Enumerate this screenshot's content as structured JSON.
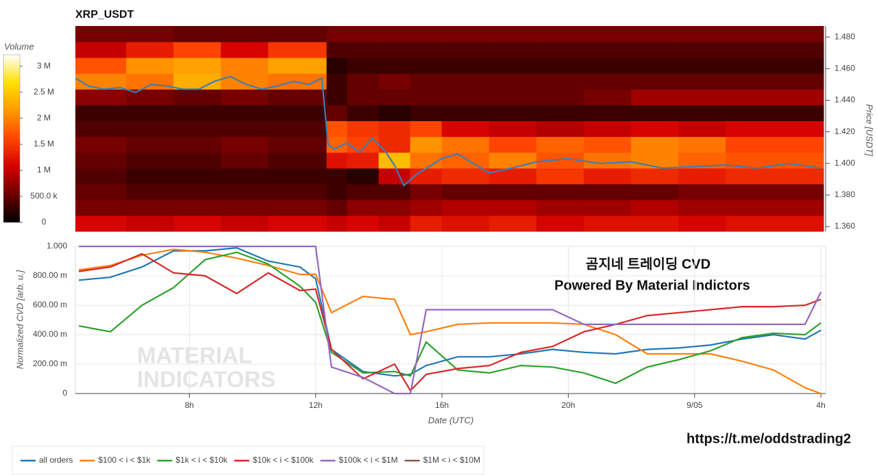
{
  "chart_data": [
    {
      "type": "heatmap",
      "title": "XRP_USDT",
      "xlim": [
        4.39,
        28.1
      ],
      "x_bins": [
        4.39,
        6,
        7.5,
        9,
        10.5,
        12.35,
        13,
        14,
        15,
        16,
        17.5,
        19,
        20.5,
        22,
        23.5,
        25,
        28.1
      ],
      "y_bins": [
        1.357,
        1.367,
        1.377,
        1.387,
        1.397,
        1.407,
        1.417,
        1.427,
        1.437,
        1.447,
        1.457,
        1.467,
        1.477,
        1.487
      ],
      "z": [
        [
          1.1,
          1.0,
          1.1,
          1.0,
          1.1,
          1.0,
          1.1,
          1.0,
          1.3,
          1.2,
          1.3,
          1.1,
          1.2,
          1.2,
          1.1,
          1.2
        ],
        [
          0.6,
          0.6,
          0.6,
          0.6,
          0.6,
          0.5,
          0.7,
          0.7,
          0.8,
          0.9,
          0.9,
          0.8,
          0.8,
          0.9,
          0.8,
          0.8
        ],
        [
          0.5,
          0.4,
          0.4,
          0.4,
          0.4,
          0.3,
          0.4,
          0.4,
          0.6,
          0.5,
          0.5,
          0.5,
          0.5,
          0.5,
          0.6,
          0.6
        ],
        [
          0.4,
          0.3,
          0.3,
          0.3,
          0.3,
          0.3,
          0.2,
          1.0,
          1.3,
          1.4,
          1.3,
          1.5,
          1.3,
          1.4,
          1.3,
          1.4
        ],
        [
          0.5,
          0.4,
          0.4,
          0.5,
          0.4,
          1.2,
          1.3,
          2.4,
          1.9,
          1.8,
          2.0,
          1.7,
          1.9,
          2.0,
          1.8,
          1.7
        ],
        [
          0.6,
          0.5,
          0.5,
          0.6,
          0.5,
          1.8,
          1.6,
          1.4,
          2.1,
          1.9,
          1.6,
          1.8,
          1.7,
          2.0,
          1.9,
          1.6
        ],
        [
          0.4,
          0.4,
          0.4,
          0.4,
          0.4,
          1.7,
          1.5,
          1.4,
          1.6,
          1.1,
          1.0,
          0.9,
          1.0,
          1.1,
          1.0,
          1.1
        ],
        [
          0.3,
          0.3,
          0.3,
          0.3,
          0.3,
          0.5,
          0.3,
          0.2,
          0.3,
          0.3,
          0.3,
          0.3,
          0.3,
          0.3,
          0.3,
          0.3
        ],
        [
          0.7,
          0.6,
          0.5,
          0.6,
          0.5,
          0.3,
          0.5,
          0.5,
          0.5,
          0.5,
          0.5,
          0.5,
          0.6,
          0.8,
          0.8,
          0.8
        ],
        [
          2.0,
          1.9,
          2.3,
          2.0,
          1.9,
          0.3,
          0.5,
          0.6,
          0.5,
          0.5,
          0.5,
          0.5,
          0.5,
          0.5,
          0.5,
          0.5
        ],
        [
          1.7,
          2.1,
          2.2,
          2.0,
          2.2,
          0.2,
          0.3,
          0.3,
          0.3,
          0.3,
          0.3,
          0.3,
          0.3,
          0.3,
          0.3,
          0.3
        ],
        [
          1.0,
          1.3,
          1.6,
          1.1,
          1.5,
          0.4,
          0.4,
          0.4,
          0.4,
          0.4,
          0.4,
          0.4,
          0.4,
          0.4,
          0.4,
          0.4
        ],
        [
          0.6,
          0.6,
          0.5,
          0.5,
          0.5,
          0.6,
          0.6,
          0.6,
          0.6,
          0.6,
          0.6,
          0.6,
          0.6,
          0.6,
          0.6,
          0.6
        ]
      ],
      "colorbar": {
        "label": "Volume",
        "lim": [
          0,
          3.22
        ],
        "ticks": [
          0,
          {
            "value": 0.5,
            "label": "500.0 k"
          },
          {
            "value": 1,
            "label": "1 M"
          },
          {
            "value": 1.5,
            "label": "1.5 M"
          },
          {
            "value": 2,
            "label": "2 M"
          },
          {
            "value": 2.5,
            "label": "2.5 M"
          },
          {
            "value": 3,
            "label": "3 M"
          }
        ],
        "colors": [
          "#000000",
          "#6b0000",
          "#d40000",
          "#ff4500",
          "#ff9a00",
          "#ffe000",
          "#ffffff"
        ]
      },
      "ylabel": "Price [USDT]",
      "ylim": [
        1.357,
        1.487
      ],
      "yticks": [
        {
          "value": 1.36,
          "label": "1.360"
        },
        {
          "value": 1.38,
          "label": "1.380"
        },
        {
          "value": 1.4,
          "label": "1.400"
        },
        {
          "value": 1.42,
          "label": "1.420"
        },
        {
          "value": 1.44,
          "label": "1.440"
        },
        {
          "value": 1.46,
          "label": "1.460"
        },
        {
          "value": 1.48,
          "label": "1.480"
        }
      ],
      "line": {
        "color": "#3a7eb5",
        "x": [
          4.4,
          4.8,
          5.3,
          5.8,
          6.3,
          6.8,
          7.3,
          7.8,
          8.3,
          8.8,
          9.3,
          9.8,
          10.3,
          10.8,
          11.3,
          11.8,
          12.2,
          12.4,
          12.6,
          13.0,
          13.4,
          13.8,
          14.2,
          14.5,
          14.8,
          15.2,
          15.6,
          16.0,
          16.5,
          17.0,
          17.5,
          18.0,
          19.0,
          20.0,
          21.0,
          22.0,
          23.0,
          24.0,
          25.0,
          26.0,
          27.0,
          28.0
        ],
        "values": [
          1.454,
          1.449,
          1.447,
          1.448,
          1.445,
          1.45,
          1.449,
          1.447,
          1.447,
          1.452,
          1.455,
          1.45,
          1.447,
          1.449,
          1.452,
          1.45,
          1.454,
          1.412,
          1.409,
          1.413,
          1.407,
          1.416,
          1.408,
          1.399,
          1.386,
          1.393,
          1.398,
          1.403,
          1.406,
          1.4,
          1.394,
          1.396,
          1.401,
          1.403,
          1.4,
          1.401,
          1.397,
          1.398,
          1.399,
          1.397,
          1.4,
          1.397
        ]
      }
    },
    {
      "type": "line",
      "xlabel": "Date (UTC)",
      "ylabel": "Normalized CVD [arb. u.]",
      "xlim": [
        4.39,
        28.15
      ],
      "xticks": [
        {
          "value": 8,
          "label": "8h"
        },
        {
          "value": 12,
          "label": "12h"
        },
        {
          "value": 16,
          "label": "16h"
        },
        {
          "value": 20,
          "label": "20h"
        },
        {
          "value": 24,
          "label": "9/05"
        },
        {
          "value": 28,
          "label": "4h"
        }
      ],
      "ylim": [
        0,
        1
      ],
      "yticks": [
        0,
        {
          "value": 0.2,
          "label": "200.00 m"
        },
        {
          "value": 0.4,
          "label": "400.00 m"
        },
        {
          "value": 0.6,
          "label": "600.00 m"
        },
        {
          "value": 0.8,
          "label": "800.00 m"
        },
        {
          "value": 1,
          "label": "1.000"
        }
      ],
      "grid": true,
      "x": [
        4.5,
        5.5,
        6.5,
        7.5,
        8.5,
        9.5,
        10.5,
        11.5,
        12,
        12.5,
        13.5,
        14.5,
        15,
        15.5,
        16.5,
        17.5,
        18.5,
        19.5,
        20.5,
        21.5,
        22.5,
        23.5,
        24.5,
        25.5,
        26.5,
        27.5,
        28
      ],
      "series": [
        {
          "name": "all orders",
          "color": "#1f77b4",
          "values": [
            0.77,
            0.79,
            0.86,
            0.97,
            0.97,
            0.99,
            0.9,
            0.86,
            0.78,
            0.3,
            0.15,
            0.12,
            0.13,
            0.19,
            0.25,
            0.25,
            0.27,
            0.3,
            0.28,
            0.27,
            0.3,
            0.31,
            0.33,
            0.37,
            0.4,
            0.37,
            0.43
          ]
        },
        {
          "name": "$100 < i < $1k",
          "color": "#ff7f0e",
          "values": [
            0.84,
            0.87,
            0.94,
            0.98,
            0.96,
            0.92,
            0.87,
            0.81,
            0.81,
            0.55,
            0.66,
            0.64,
            0.4,
            0.42,
            0.47,
            0.48,
            0.48,
            0.48,
            0.47,
            0.4,
            0.27,
            0.27,
            0.27,
            0.22,
            0.16,
            0.04,
            0
          ]
        },
        {
          "name": "$1k < i < $10k",
          "color": "#2ca02c",
          "values": [
            0.46,
            0.42,
            0.6,
            0.72,
            0.91,
            0.96,
            0.88,
            0.73,
            0.62,
            0.28,
            0.14,
            0.15,
            0.12,
            0.35,
            0.16,
            0.14,
            0.19,
            0.18,
            0.14,
            0.07,
            0.18,
            0.23,
            0.29,
            0.38,
            0.41,
            0.4,
            0.48
          ]
        },
        {
          "name": "$10k < i < $100k",
          "color": "#d62728",
          "values": [
            0.83,
            0.86,
            0.95,
            0.82,
            0.8,
            0.68,
            0.82,
            0.7,
            0.71,
            0.3,
            0.1,
            0.2,
            0.02,
            0.13,
            0.17,
            0.19,
            0.28,
            0.32,
            0.42,
            0.47,
            0.53,
            0.55,
            0.57,
            0.59,
            0.59,
            0.6,
            0.64
          ]
        },
        {
          "name": "$100k < i < $1M",
          "color": "#9467bd",
          "values": [
            1,
            1,
            1,
            1,
            1,
            1,
            1,
            1,
            1,
            0.18,
            0.11,
            0,
            0,
            0.57,
            0.57,
            0.57,
            0.57,
            0.57,
            0.47,
            0.47,
            0.47,
            0.47,
            0.47,
            0.47,
            0.47,
            0.47,
            0.69
          ]
        },
        {
          "name": "$1M < i < $10M",
          "color": "#8c564b",
          "values": [
            null,
            null,
            null,
            null,
            null,
            null,
            null,
            null,
            null,
            null,
            null,
            null,
            null,
            null,
            null,
            null,
            null,
            null,
            null,
            null,
            null,
            null,
            null,
            null,
            null,
            null,
            null
          ]
        }
      ],
      "annotations": [
        "곰지네 트레이딩 CVD",
        "Powered By Material Indictors"
      ],
      "watermark": [
        "MATERIAL",
        "INDICATORS"
      ]
    }
  ],
  "footer": "https://t.me/oddstrading2"
}
